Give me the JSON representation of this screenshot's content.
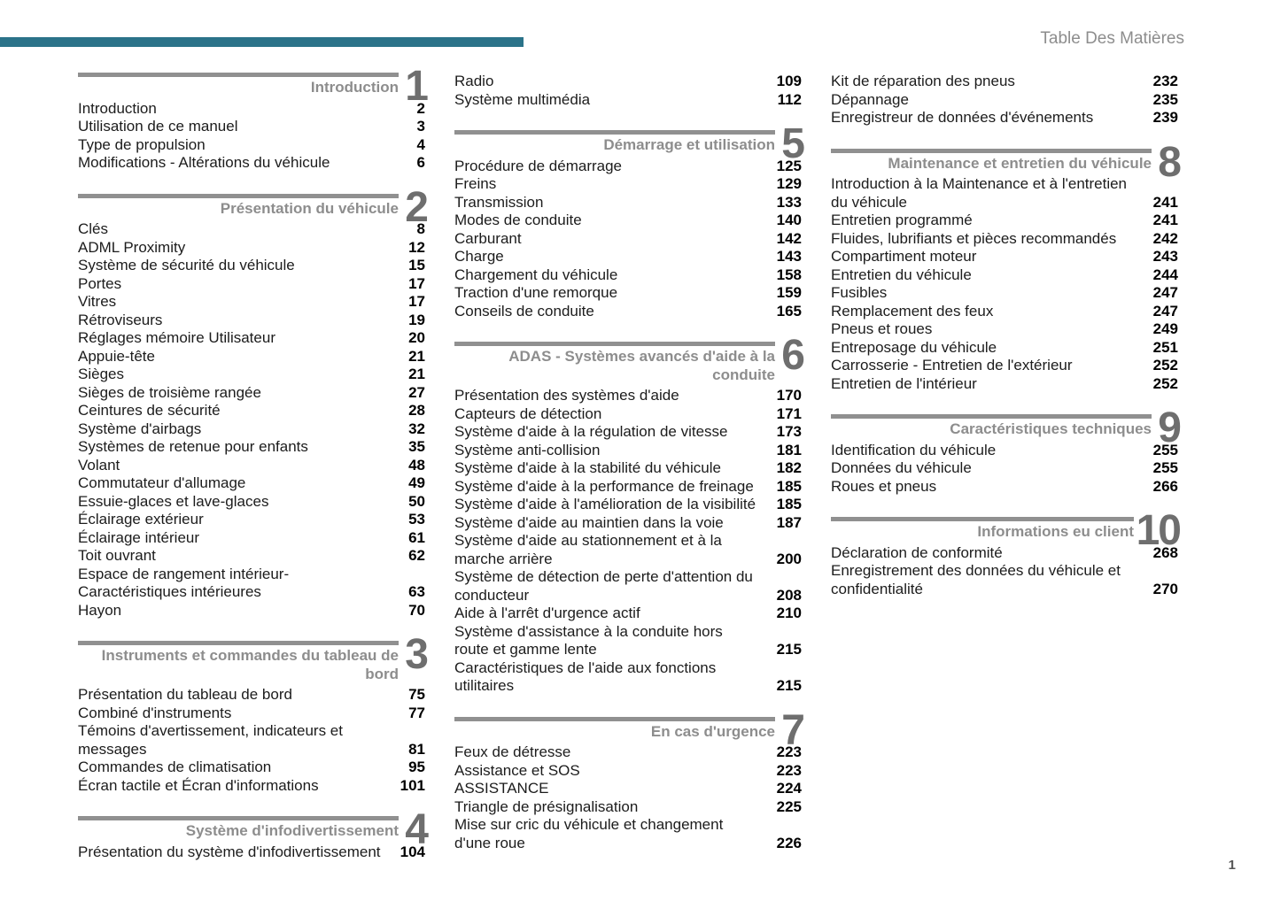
{
  "page": {
    "title": "Table Des Matières",
    "page_number": "1"
  },
  "colors": {
    "accent_teal": "#2b7389",
    "bar_gray": "#909090",
    "heading_gray": "#8d8d8d",
    "number_gray": "#6e6e6e"
  },
  "columns": [
    {
      "blocks": [
        {
          "number": "1",
          "title": "Introduction",
          "items": [
            {
              "label": "Introduction",
              "page": "2"
            },
            {
              "label": "Utilisation de ce manuel",
              "page": "3"
            },
            {
              "label": "Type de propulsion",
              "page": "4"
            },
            {
              "label": "Modifications - Altérations du véhicule",
              "page": "6"
            }
          ]
        },
        {
          "number": "2",
          "title": "Présentation du véhicule",
          "items": [
            {
              "label": "Clés",
              "page": "8"
            },
            {
              "label": "ADML Proximity",
              "page": "12"
            },
            {
              "label": "Système de sécurité du véhicule",
              "page": "15"
            },
            {
              "label": "Portes",
              "page": "17"
            },
            {
              "label": "Vitres",
              "page": "17"
            },
            {
              "label": "Rétroviseurs",
              "page": "19"
            },
            {
              "label": "Réglages mémoire Utilisateur",
              "page": "20"
            },
            {
              "label": "Appuie-tête",
              "page": "21"
            },
            {
              "label": "Sièges",
              "page": "21"
            },
            {
              "label": "Sièges de troisième rangée",
              "page": "27"
            },
            {
              "label": "Ceintures de sécurité",
              "page": "28"
            },
            {
              "label": "Système d'airbags",
              "page": "32"
            },
            {
              "label": "Systèmes de retenue pour enfants",
              "page": "35"
            },
            {
              "label": "Volant",
              "page": "48"
            },
            {
              "label": "Commutateur d'allumage",
              "page": "49"
            },
            {
              "label": "Essuie-glaces et lave-glaces",
              "page": "50"
            },
            {
              "label": "Éclairage extérieur",
              "page": "53"
            },
            {
              "label": "Éclairage intérieur",
              "page": "61"
            },
            {
              "label": "Toit ouvrant",
              "page": "62"
            },
            {
              "label": "Espace de rangement intérieur-\nCaractéristiques intérieures",
              "page": "63"
            },
            {
              "label": "Hayon",
              "page": "70"
            }
          ]
        },
        {
          "number": "3",
          "title": "Instruments et commandes du tableau de\nbord",
          "items": [
            {
              "label": "Présentation du tableau de bord",
              "page": "75"
            },
            {
              "label": "Combiné d'instruments",
              "page": "77"
            },
            {
              "label": "Témoins d'avertissement, indicateurs et\nmessages",
              "page": "81"
            },
            {
              "label": "Commandes de climatisation",
              "page": "95"
            },
            {
              "label": "Écran tactile et Écran d'informations",
              "page": "101"
            }
          ]
        },
        {
          "number": "4",
          "title": "Système d'infodivertissement",
          "items": [
            {
              "label": "Présentation du système d'infodivertissement",
              "page": "104"
            }
          ]
        }
      ]
    },
    {
      "blocks": [
        {
          "items": [
            {
              "label": "Radio",
              "page": "109"
            },
            {
              "label": "Système multimédia",
              "page": "112"
            }
          ]
        },
        {
          "number": "5",
          "title": "Démarrage et utilisation",
          "items": [
            {
              "label": "Procédure de démarrage",
              "page": "125"
            },
            {
              "label": "Freins",
              "page": "129"
            },
            {
              "label": "Transmission",
              "page": "133"
            },
            {
              "label": "Modes de conduite",
              "page": "140"
            },
            {
              "label": "Carburant",
              "page": "142"
            },
            {
              "label": "Charge",
              "page": "143"
            },
            {
              "label": "Chargement du véhicule",
              "page": "158"
            },
            {
              "label": "Traction d'une remorque",
              "page": "159"
            },
            {
              "label": "Conseils de conduite",
              "page": "165"
            }
          ]
        },
        {
          "number": "6",
          "title": "ADAS - Systèmes avancés d'aide à la\nconduite",
          "items": [
            {
              "label": "Présentation des systèmes d'aide",
              "page": "170"
            },
            {
              "label": "Capteurs de détection",
              "page": "171"
            },
            {
              "label": "Système d'aide à la régulation de vitesse",
              "page": "173"
            },
            {
              "label": "Système anti-collision",
              "page": "181"
            },
            {
              "label": "Système d'aide à la stabilité du véhicule",
              "page": "182"
            },
            {
              "label": "Système d'aide à la performance de freinage",
              "page": "185"
            },
            {
              "label": "Système d'aide à l'amélioration de la visibilité",
              "page": "185"
            },
            {
              "label": "Système d'aide au maintien dans la voie",
              "page": "187"
            },
            {
              "label": "Système d'aide au stationnement et à la\nmarche arrière",
              "page": "200"
            },
            {
              "label": "Système de détection de perte d'attention du\nconducteur",
              "page": "208"
            },
            {
              "label": "Aide à l'arrêt d'urgence actif",
              "page": "210"
            },
            {
              "label": "Système d'assistance à la conduite hors\nroute et gamme lente",
              "page": "215"
            },
            {
              "label": "Caractéristiques de l'aide aux fonctions\nutilitaires",
              "page": "215"
            }
          ]
        },
        {
          "number": "7",
          "title": "En cas d'urgence",
          "items": [
            {
              "label": "Feux de détresse",
              "page": "223"
            },
            {
              "label": "Assistance et SOS",
              "page": "223"
            },
            {
              "label": "ASSISTANCE",
              "page": "224"
            },
            {
              "label": "Triangle de présignalisation",
              "page": "225"
            },
            {
              "label": "Mise sur cric du véhicule et changement\nd'une roue",
              "page": "226"
            }
          ]
        }
      ]
    },
    {
      "blocks": [
        {
          "items": [
            {
              "label": "Kit de réparation des pneus",
              "page": "232"
            },
            {
              "label": "Dépannage",
              "page": "235"
            },
            {
              "label": "Enregistreur de données d'événements",
              "page": "239"
            }
          ]
        },
        {
          "number": "8",
          "title": "Maintenance et entretien du véhicule",
          "items": [
            {
              "label": "Introduction à la Maintenance et à l'entretien\ndu véhicule",
              "page": "241"
            },
            {
              "label": "Entretien programmé",
              "page": "241"
            },
            {
              "label": "Fluides, lubrifiants et pièces recommandés",
              "page": "242"
            },
            {
              "label": "Compartiment moteur",
              "page": "243"
            },
            {
              "label": "Entretien du véhicule",
              "page": "244"
            },
            {
              "label": "Fusibles",
              "page": "247"
            },
            {
              "label": "Remplacement des feux",
              "page": "247"
            },
            {
              "label": "Pneus et roues",
              "page": "249"
            },
            {
              "label": "Entreposage du véhicule",
              "page": "251"
            },
            {
              "label": "Carrosserie - Entretien de l'extérieur",
              "page": "252"
            },
            {
              "label": "Entretien de l'intérieur",
              "page": "252"
            }
          ]
        },
        {
          "number": "9",
          "title": "Caractéristiques techniques",
          "items": [
            {
              "label": "Identification du véhicule",
              "page": "255"
            },
            {
              "label": "Données du véhicule",
              "page": "255"
            },
            {
              "label": "Roues et pneus",
              "page": "266"
            }
          ]
        },
        {
          "number": "10",
          "title": "Informations eu client",
          "items": [
            {
              "label": "Déclaration de conformité",
              "page": "268"
            },
            {
              "label": "Enregistrement des données du véhicule et\nconfidentialité",
              "page": "270"
            }
          ]
        }
      ]
    }
  ]
}
